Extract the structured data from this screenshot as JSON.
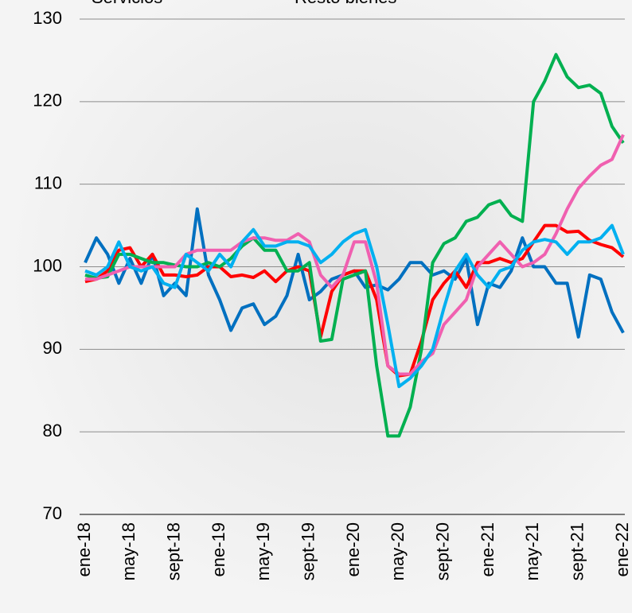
{
  "chart_data": {
    "type": "line",
    "categories": [
      "ene-18",
      null,
      null,
      null,
      "may-18",
      null,
      null,
      null,
      "sept-18",
      null,
      null,
      null,
      "ene-19",
      null,
      null,
      null,
      "may-19",
      null,
      null,
      null,
      "sept-19",
      null,
      null,
      null,
      "ene-20",
      null,
      null,
      null,
      "may-20",
      null,
      null,
      null,
      "sept-20",
      null,
      null,
      null,
      "ene-21",
      null,
      null,
      null,
      "may-21",
      null,
      null,
      null,
      "sept-21",
      null,
      null,
      null,
      "ene-22"
    ],
    "series": [
      {
        "color": "#0070c0",
        "values": [
          100.5,
          103.5,
          101.5,
          98,
          101,
          98,
          101.5,
          96.5,
          98,
          96.5,
          107,
          99,
          96,
          92.3,
          95,
          95.5,
          93,
          94,
          96.5,
          101.5,
          96,
          97,
          98.5,
          99,
          99.5,
          97.5,
          97.8,
          97.2,
          98.5,
          100.5,
          100.5,
          99,
          99.5,
          98.5,
          101,
          93,
          98,
          97.5,
          99.5,
          103.5,
          100,
          100,
          98,
          98,
          91.5,
          99,
          98.5,
          94.5,
          92
        ]
      },
      {
        "name": "Servicios",
        "color": "#ff0000",
        "values": [
          98.2,
          98.5,
          99.5,
          102,
          102.3,
          100,
          101.5,
          99,
          99,
          98.8,
          99,
          100,
          100,
          98.8,
          99,
          98.7,
          99.5,
          98.2,
          99.5,
          100,
          99.5,
          91.5,
          97,
          99,
          99.5,
          99.5,
          96,
          88,
          86.8,
          87,
          91,
          96,
          98,
          99.5,
          97.5,
          100.5,
          100.5,
          101,
          100.5,
          101,
          103,
          105,
          105,
          104.2,
          104.3,
          103.2,
          102.7,
          102.3,
          101.2
        ]
      },
      {
        "color": "#00b050",
        "values": [
          99,
          98.6,
          98.8,
          101.5,
          101.5,
          101,
          100.5,
          100.5,
          100.2,
          100,
          100,
          100.5,
          100,
          101,
          102.5,
          103.5,
          102,
          102,
          99.5,
          99.5,
          100.5,
          91,
          91.2,
          98.5,
          99,
          99.5,
          88,
          79.5,
          79.5,
          83,
          90,
          100.5,
          102.8,
          103.5,
          105.5,
          106,
          107.5,
          108,
          106.2,
          105.5,
          120,
          122.5,
          125.7,
          123,
          121.7,
          122,
          121,
          117,
          115
        ]
      },
      {
        "color": "#f060b0",
        "values": [
          98.5,
          98.5,
          99,
          99.5,
          100,
          100,
          100,
          100,
          100,
          101.5,
          102,
          102,
          102,
          102,
          103,
          103.5,
          103.5,
          103.2,
          103.2,
          104,
          103,
          99,
          97.5,
          99,
          103,
          103,
          98,
          88,
          87,
          87,
          88.5,
          89.5,
          93,
          94.5,
          96,
          100,
          101.5,
          103,
          101.5,
          100,
          100.5,
          101.5,
          104,
          107,
          109.5,
          111,
          112.3,
          113,
          116
        ]
      },
      {
        "name": "Resto bienes",
        "color": "#00b0f0",
        "values": [
          99.5,
          99,
          100,
          103,
          100,
          99.5,
          100,
          98,
          97.5,
          101.5,
          100.5,
          99.5,
          101.5,
          100,
          103,
          104.5,
          102.5,
          102.5,
          103,
          103,
          102.5,
          100.5,
          101.5,
          103,
          104,
          104.5,
          100,
          93,
          85.5,
          86.5,
          88,
          90,
          95,
          99.5,
          101.5,
          99,
          97.5,
          99.5,
          100,
          102,
          103,
          103.3,
          103,
          101.5,
          103,
          103,
          103.5,
          105,
          101.5
        ]
      }
    ],
    "ylim": [
      70,
      130
    ],
    "yticks": [
      70,
      80,
      90,
      100,
      110,
      120,
      130
    ],
    "grid": true
  }
}
